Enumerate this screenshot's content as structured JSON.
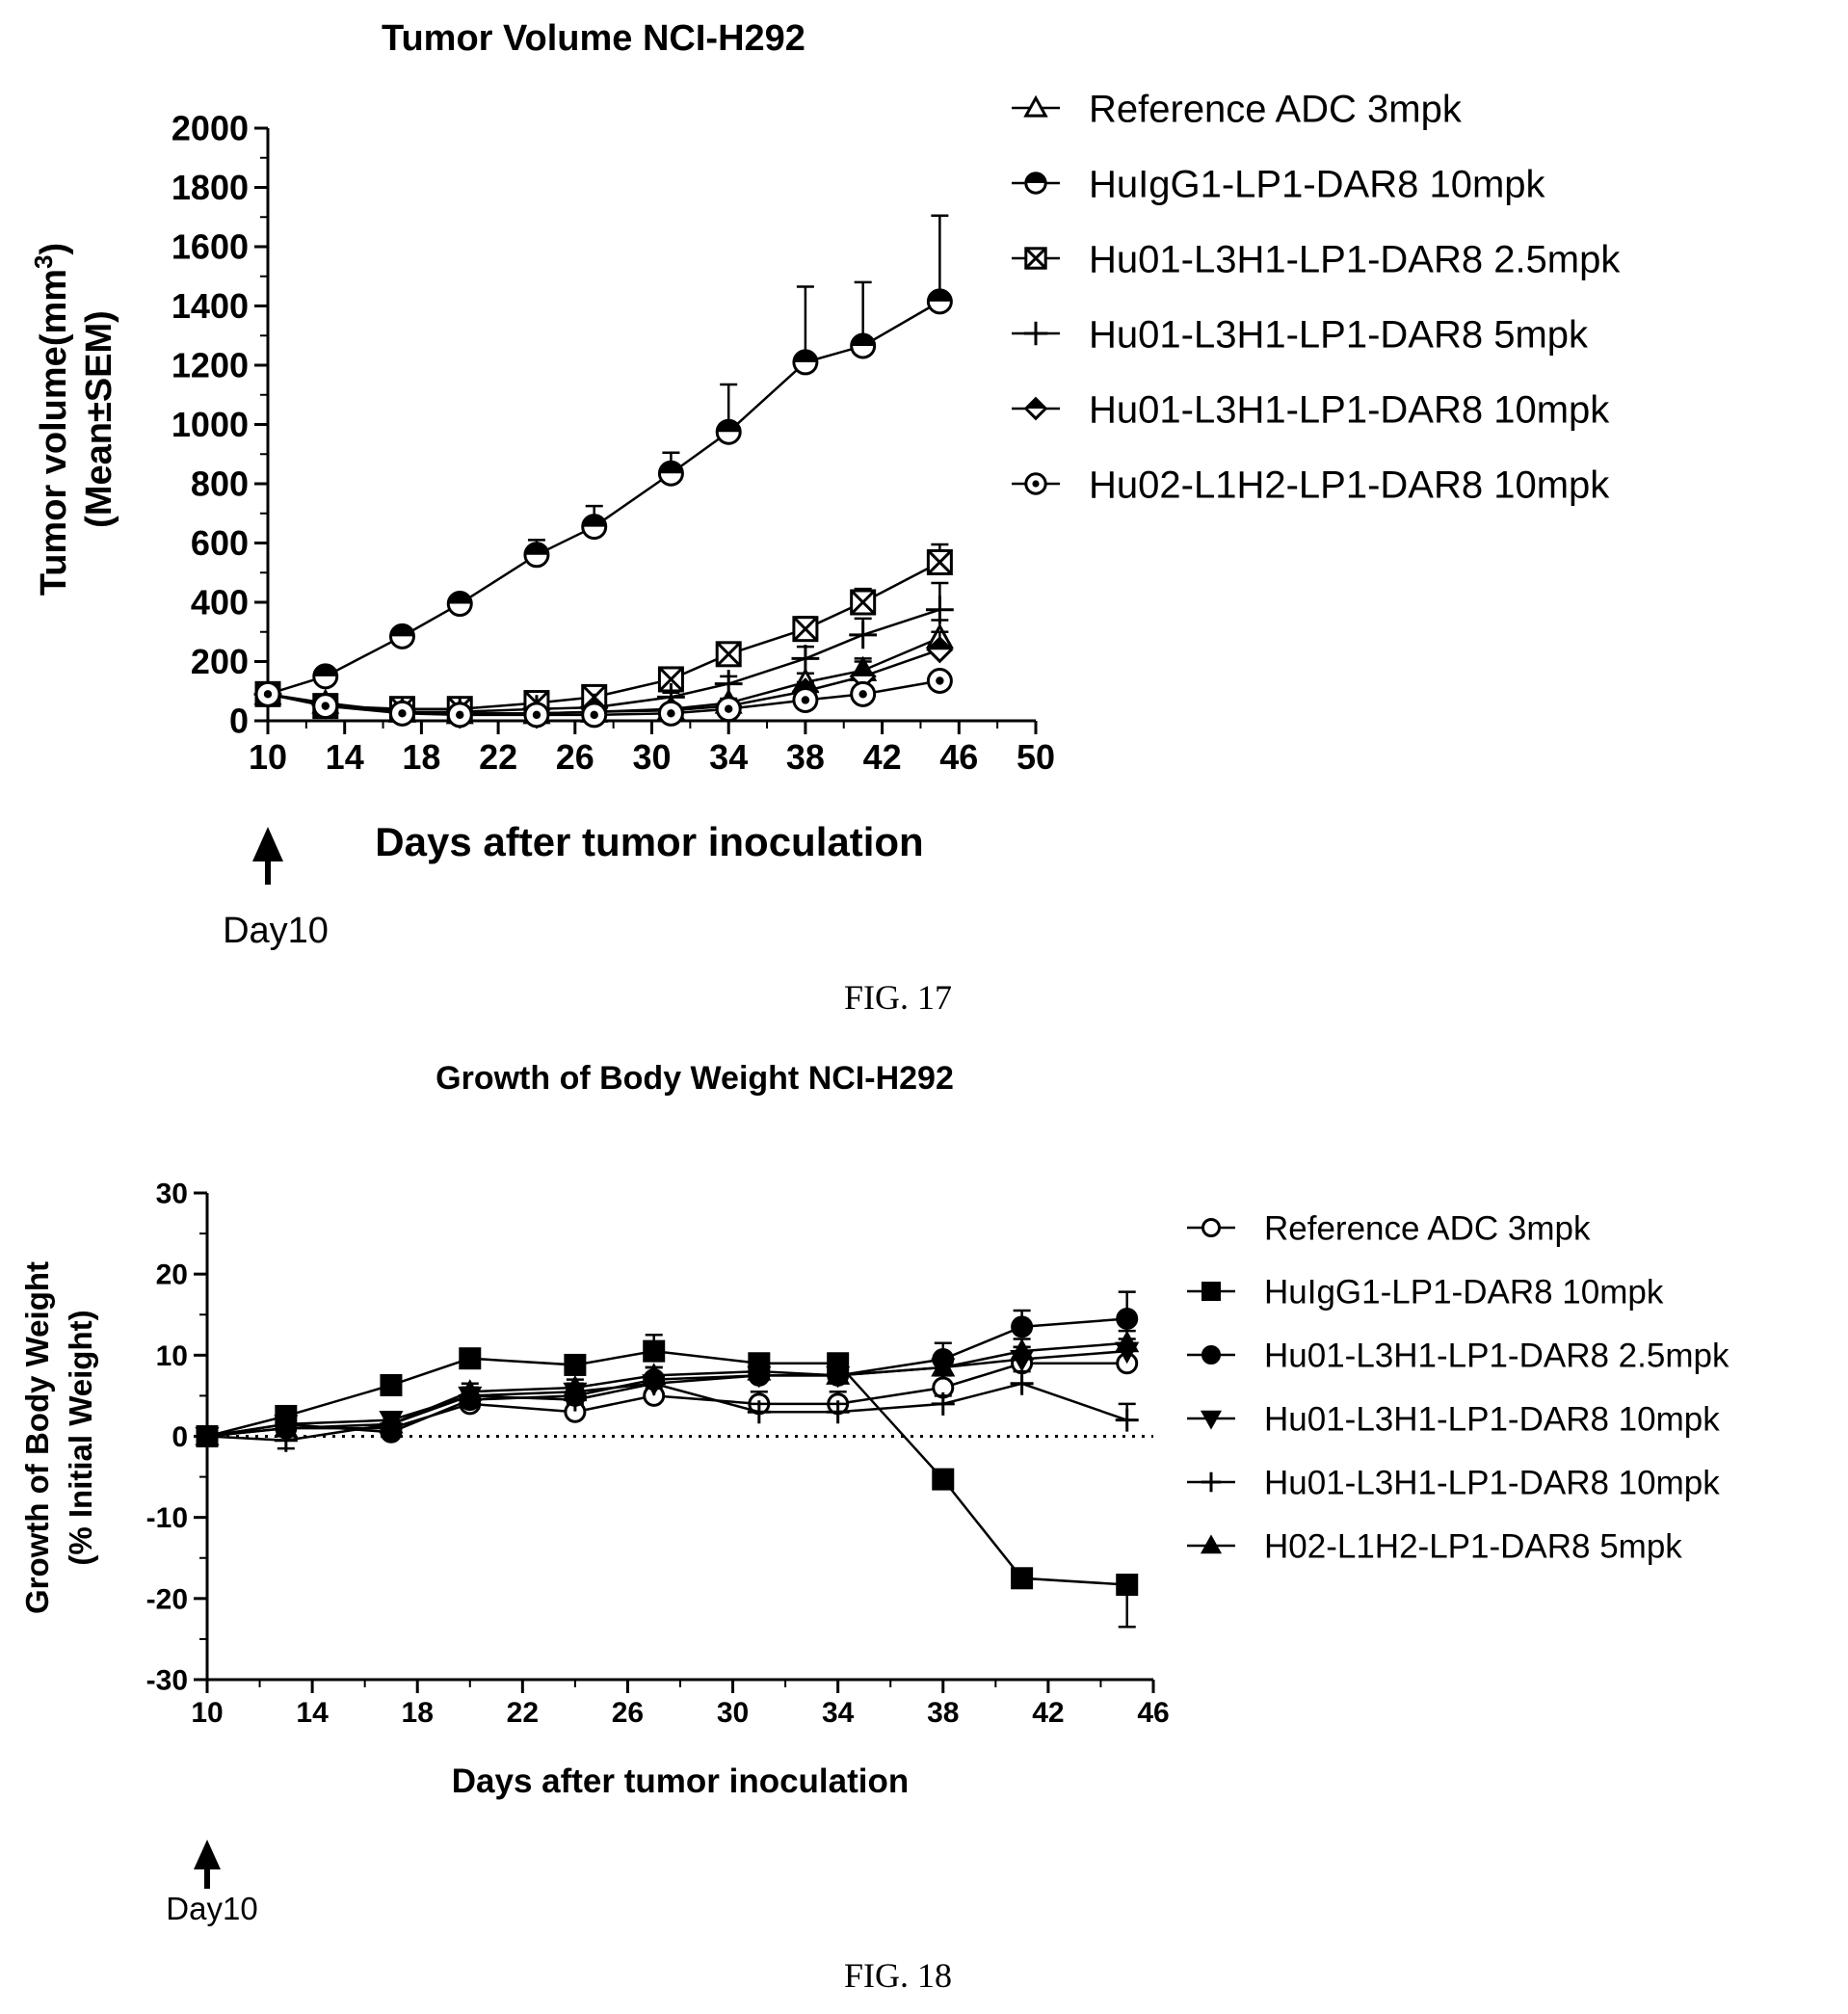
{
  "figures": [
    {
      "caption": "FIG. 17",
      "arrow_label": "Day10"
    },
    {
      "caption": "FIG. 18",
      "arrow_label": "Day10"
    }
  ],
  "chart_data": [
    {
      "type": "line",
      "title": "Tumor Volume NCI-H292",
      "xlabel": "Days  after tumor inoculation",
      "ylabel_line1": "Tumor volume(mm",
      "ylabel_sup": "3",
      "ylabel_line1_end": ")",
      "ylabel_line2": "(Mean±SEM)",
      "xlim": [
        10,
        50
      ],
      "ylim": [
        0,
        2000
      ],
      "xticks": [
        10,
        14,
        18,
        22,
        26,
        30,
        34,
        38,
        42,
        46,
        50
      ],
      "yticks": [
        0,
        200,
        400,
        600,
        800,
        1000,
        1200,
        1400,
        1600,
        1800,
        2000
      ],
      "legend_position": "right",
      "x": [
        10,
        13,
        17,
        20,
        24,
        27,
        31,
        34,
        38,
        41,
        45
      ],
      "series": [
        {
          "name": "Reference ADC 3mpk",
          "marker": "triangle-open",
          "values": [
            90,
            60,
            30,
            25,
            25,
            30,
            40,
            60,
            130,
            170,
            280
          ],
          "err": [
            10,
            10,
            8,
            8,
            8,
            8,
            10,
            15,
            30,
            40,
            60
          ]
        },
        {
          "name": "HuIgG1-LP1-DAR8 10mpk",
          "marker": "circle-half",
          "values": [
            90,
            150,
            285,
            395,
            560,
            655,
            835,
            975,
            1210,
            1265,
            1415
          ],
          "err": [
            10,
            15,
            20,
            25,
            50,
            70,
            70,
            160,
            255,
            215,
            290
          ]
        },
        {
          "name": "Hu01-L3H1-LP1-DAR8 2.5mpk",
          "marker": "square-x",
          "values": [
            90,
            50,
            40,
            40,
            60,
            80,
            140,
            225,
            310,
            400,
            535
          ],
          "err": [
            10,
            8,
            8,
            8,
            10,
            15,
            20,
            30,
            40,
            45,
            60
          ]
        },
        {
          "name": "Hu01-L3H1-LP1-DAR8 5mpk",
          "marker": "plus",
          "values": [
            90,
            55,
            30,
            30,
            40,
            45,
            80,
            125,
            210,
            290,
            375
          ],
          "err": [
            10,
            8,
            8,
            8,
            10,
            10,
            15,
            25,
            40,
            55,
            90
          ]
        },
        {
          "name": "Hu01-L3H1-LP1-DAR8 10mpk",
          "marker": "diamond-half",
          "values": [
            90,
            55,
            30,
            25,
            25,
            30,
            35,
            50,
            100,
            150,
            240
          ],
          "err": [
            10,
            8,
            8,
            8,
            8,
            8,
            10,
            15,
            30,
            50,
            60
          ]
        },
        {
          "name": "Hu02-L1H2-LP1-DAR8 10mpk",
          "marker": "circle-dot",
          "values": [
            90,
            50,
            25,
            20,
            20,
            20,
            25,
            40,
            70,
            90,
            135
          ],
          "err": [
            10,
            8,
            5,
            5,
            5,
            5,
            8,
            10,
            15,
            20,
            25
          ]
        }
      ]
    },
    {
      "type": "line",
      "title": "Growth of Body Weight  NCI-H292",
      "xlabel": "Days  after tumor inoculation",
      "ylabel_line1": "Growth of Body Weight",
      "ylabel_line2": "(% Initial Weight)",
      "xlim": [
        10,
        46
      ],
      "ylim": [
        -30,
        30
      ],
      "xticks": [
        10,
        14,
        18,
        22,
        26,
        30,
        34,
        38,
        42,
        46
      ],
      "yticks": [
        -30,
        -20,
        -10,
        0,
        10,
        20,
        30
      ],
      "zero_line": "dotted",
      "legend_position": "right",
      "x": [
        10,
        13,
        17,
        20,
        24,
        27,
        31,
        34,
        38,
        41,
        45
      ],
      "series": [
        {
          "name": "Reference ADC 3mpk",
          "marker": "circle-open",
          "values": [
            0,
            1,
            1,
            4,
            3,
            5,
            4,
            4,
            6,
            9,
            9
          ],
          "err": [
            0,
            1,
            1,
            1,
            1,
            1,
            1.5,
            1.5,
            1.5,
            2,
            2.5
          ]
        },
        {
          "name": "HuIgG1-LP1-DAR8 10mpk",
          "marker": "square",
          "values": [
            0,
            2.5,
            6.3,
            9.6,
            8.8,
            10.5,
            9,
            9,
            -5.3,
            -17.5,
            -18.3
          ],
          "err": [
            0,
            1,
            1,
            1,
            1,
            2,
            1,
            1,
            1,
            1,
            5.2
          ]
        },
        {
          "name": "Hu01-L3H1-LP1-DAR8 2.5mpk",
          "marker": "circle",
          "values": [
            0,
            1.5,
            0.5,
            4.5,
            5,
            7,
            7.5,
            7.5,
            9.5,
            13.5,
            14.5
          ],
          "err": [
            0,
            1,
            1,
            1,
            1,
            1.5,
            1,
            1,
            2,
            2,
            3.3
          ]
        },
        {
          "name": "Hu01-L3H1-LP1-DAR8 10mpk",
          "marker": "triangle-down",
          "values": [
            0,
            1.5,
            2,
            5,
            5.5,
            6.5,
            7.5,
            7.5,
            8.5,
            9.5,
            10.5
          ],
          "err": [
            0,
            1,
            1,
            1,
            1,
            1,
            1,
            1,
            1.5,
            1.5,
            1.5
          ]
        },
        {
          "name": "Hu01-L3H1-LP1-DAR8 10mpk",
          "marker": "plus",
          "values": [
            0,
            -0.5,
            1.5,
            5,
            4.5,
            6.5,
            3,
            3,
            4,
            6.5,
            2
          ],
          "err": [
            0,
            1,
            1,
            1,
            1,
            1,
            1,
            1,
            1,
            1.5,
            2
          ]
        },
        {
          "name": "H02-L1H2-LP1-DAR8  5mpk",
          "marker": "triangle",
          "values": [
            0,
            1,
            1.5,
            5.5,
            6,
            7.5,
            8,
            7.5,
            8.5,
            10.5,
            11.5
          ],
          "err": [
            0,
            1,
            1,
            1,
            1,
            1,
            1,
            1,
            1.5,
            1.5,
            1.5
          ]
        }
      ]
    }
  ]
}
